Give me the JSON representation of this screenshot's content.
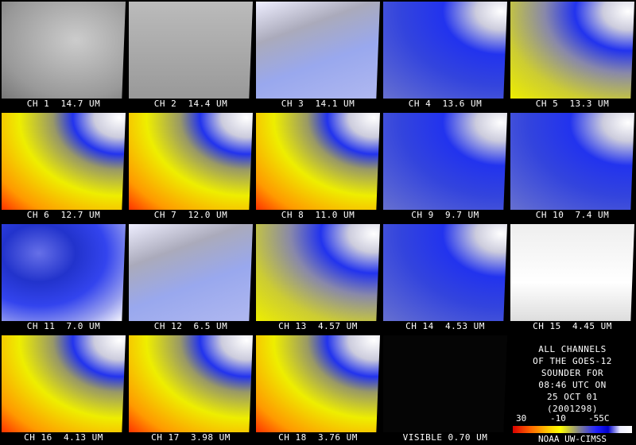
{
  "panels": [
    {
      "label": "CH 1  14.7 UM"
    },
    {
      "label": "CH 2  14.4 UM"
    },
    {
      "label": "CH 3  14.1 UM"
    },
    {
      "label": "CH 4  13.6 UM"
    },
    {
      "label": "CH 5  13.3 UM"
    },
    {
      "label": "CH 6  12.7 UM"
    },
    {
      "label": "CH 7  12.0 UM"
    },
    {
      "label": "CH 8  11.0 UM"
    },
    {
      "label": "CH 9  9.7 UM"
    },
    {
      "label": "CH 10  7.4 UM"
    },
    {
      "label": "CH 11  7.0 UM"
    },
    {
      "label": "CH 12  6.5 UM"
    },
    {
      "label": "CH 13  4.57 UM"
    },
    {
      "label": "CH 14  4.53 UM"
    },
    {
      "label": "CH 15  4.45 UM"
    },
    {
      "label": "CH 16  4.13 UM"
    },
    {
      "label": "CH 17  3.98 UM"
    },
    {
      "label": "CH 18  3.76 UM"
    },
    {
      "label": "VISIBLE 0.70 UM"
    }
  ],
  "info": {
    "lines": [
      "ALL CHANNELS",
      "OF THE GOES-12",
      "SOUNDER FOR",
      "08:46 UTC ON",
      "25 OCT 01",
      "(2001298)"
    ]
  },
  "colorbar": {
    "labels": [
      "30",
      "-10",
      "-55C"
    ]
  },
  "credit": "NOAA UW-CIMSS"
}
